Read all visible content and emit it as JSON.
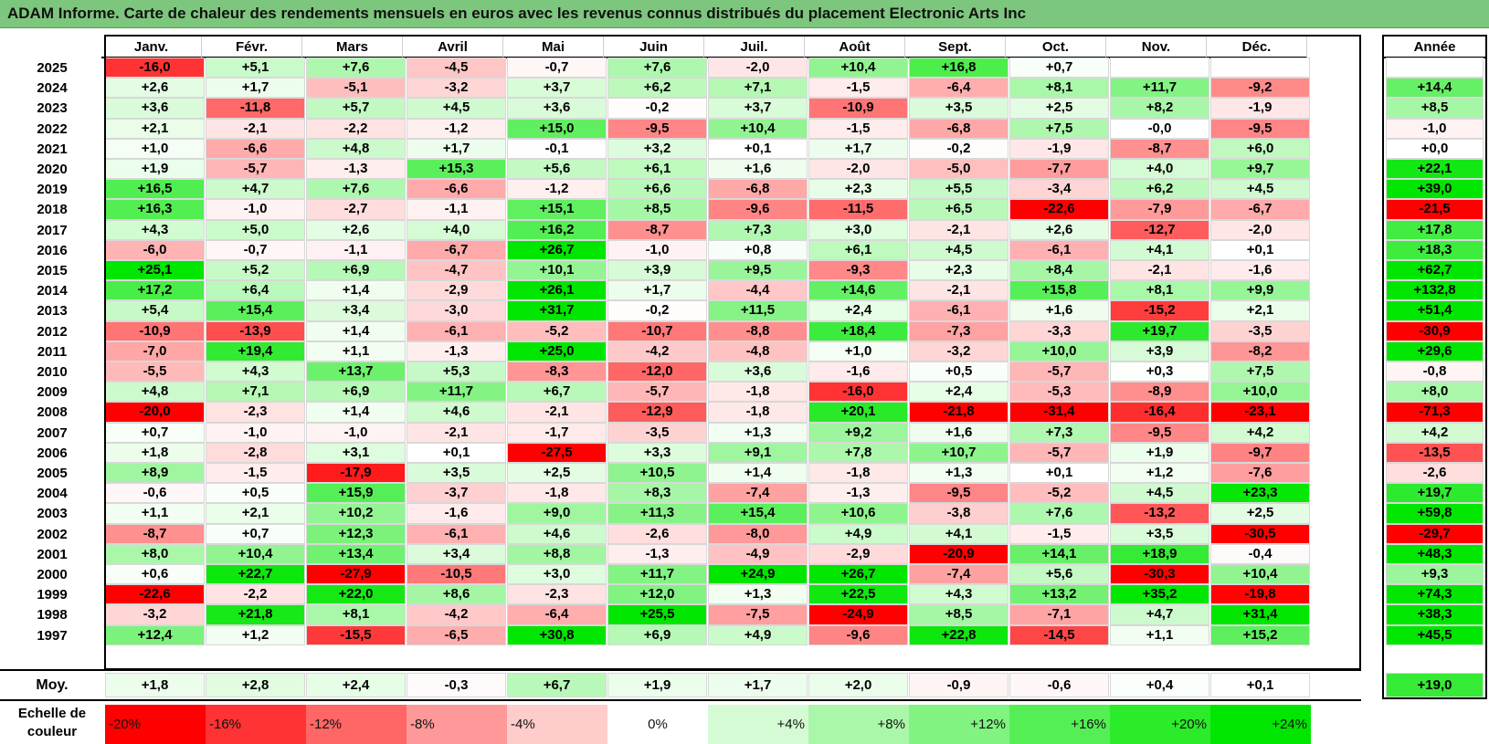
{
  "title": "ADAM Informe. Carte de chaleur des rendements mensuels en euros avec les revenus connus distribués du placement Electronic Arts Inc",
  "chart_data": {
    "type": "heatmap",
    "title": "ADAM Informe. Carte de chaleur des rendements mensuels en euros avec les revenus connus distribués du placement Electronic Arts Inc",
    "columns": [
      "Janv.",
      "Févr.",
      "Mars",
      "Avril",
      "Mai",
      "Juin",
      "Juil.",
      "Août",
      "Sept.",
      "Oct.",
      "Nov.",
      "Déc."
    ],
    "year_column_label": "Année",
    "rows": [
      {
        "year": "2025",
        "values": [
          "-16,0",
          "+5,1",
          "+7,6",
          "-4,5",
          "-0,7",
          "+7,6",
          "-2,0",
          "+10,4",
          "+16,8",
          "+0,7",
          "",
          ""
        ],
        "annual": ""
      },
      {
        "year": "2024",
        "values": [
          "+2,6",
          "+1,7",
          "-5,1",
          "-3,2",
          "+3,7",
          "+6,2",
          "+7,1",
          "-1,5",
          "-6,4",
          "+8,1",
          "+11,7",
          "-9,2"
        ],
        "annual": "+14,4"
      },
      {
        "year": "2023",
        "values": [
          "+3,6",
          "-11,8",
          "+5,7",
          "+4,5",
          "+3,6",
          "-0,2",
          "+3,7",
          "-10,9",
          "+3,5",
          "+2,5",
          "+8,2",
          "-1,9"
        ],
        "annual": "+8,5"
      },
      {
        "year": "2022",
        "values": [
          "+2,1",
          "-2,1",
          "-2,2",
          "-1,2",
          "+15,0",
          "-9,5",
          "+10,4",
          "-1,5",
          "-6,8",
          "+7,5",
          "-0,0",
          "-9,5"
        ],
        "annual": "-1,0"
      },
      {
        "year": "2021",
        "values": [
          "+1,0",
          "-6,6",
          "+4,8",
          "+1,7",
          "-0,1",
          "+3,2",
          "+0,1",
          "+1,7",
          "-0,2",
          "-1,9",
          "-8,7",
          "+6,0"
        ],
        "annual": "+0,0"
      },
      {
        "year": "2020",
        "values": [
          "+1,9",
          "-5,7",
          "-1,3",
          "+15,3",
          "+5,6",
          "+6,1",
          "+1,6",
          "-2,0",
          "-5,0",
          "-7,7",
          "+4,0",
          "+9,7"
        ],
        "annual": "+22,1"
      },
      {
        "year": "2019",
        "values": [
          "+16,5",
          "+4,7",
          "+7,6",
          "-6,6",
          "-1,2",
          "+6,6",
          "-6,8",
          "+2,3",
          "+5,5",
          "-3,4",
          "+6,2",
          "+4,5"
        ],
        "annual": "+39,0"
      },
      {
        "year": "2018",
        "values": [
          "+16,3",
          "-1,0",
          "-2,7",
          "-1,1",
          "+15,1",
          "+8,5",
          "-9,6",
          "-11,5",
          "+6,5",
          "-22,6",
          "-7,9",
          "-6,7"
        ],
        "annual": "-21,5"
      },
      {
        "year": "2017",
        "values": [
          "+4,3",
          "+5,0",
          "+2,6",
          "+4,0",
          "+16,2",
          "-8,7",
          "+7,3",
          "+3,0",
          "-2,1",
          "+2,6",
          "-12,7",
          "-2,0"
        ],
        "annual": "+17,8"
      },
      {
        "year": "2016",
        "values": [
          "-6,0",
          "-0,7",
          "-1,1",
          "-6,7",
          "+26,7",
          "-1,0",
          "+0,8",
          "+6,1",
          "+4,5",
          "-6,1",
          "+4,1",
          "+0,1"
        ],
        "annual": "+18,3"
      },
      {
        "year": "2015",
        "values": [
          "+25,1",
          "+5,2",
          "+6,9",
          "-4,7",
          "+10,1",
          "+3,9",
          "+9,5",
          "-9,3",
          "+2,3",
          "+8,4",
          "-2,1",
          "-1,6"
        ],
        "annual": "+62,7"
      },
      {
        "year": "2014",
        "values": [
          "+17,2",
          "+6,4",
          "+1,4",
          "-2,9",
          "+26,1",
          "+1,7",
          "-4,4",
          "+14,6",
          "-2,1",
          "+15,8",
          "+8,1",
          "+9,9"
        ],
        "annual": "+132,8"
      },
      {
        "year": "2013",
        "values": [
          "+5,4",
          "+15,4",
          "+3,4",
          "-3,0",
          "+31,7",
          "-0,2",
          "+11,5",
          "+2,4",
          "-6,1",
          "+1,6",
          "-15,2",
          "+2,1"
        ],
        "annual": "+51,4"
      },
      {
        "year": "2012",
        "values": [
          "-10,9",
          "-13,9",
          "+1,4",
          "-6,1",
          "-5,2",
          "-10,7",
          "-8,8",
          "+18,4",
          "-7,3",
          "-3,3",
          "+19,7",
          "-3,5"
        ],
        "annual": "-30,9"
      },
      {
        "year": "2011",
        "values": [
          "-7,0",
          "+19,4",
          "+1,1",
          "-1,3",
          "+25,0",
          "-4,2",
          "-4,8",
          "+1,0",
          "-3,2",
          "+10,0",
          "+3,9",
          "-8,2"
        ],
        "annual": "+29,6"
      },
      {
        "year": "2010",
        "values": [
          "-5,5",
          "+4,3",
          "+13,7",
          "+5,3",
          "-8,3",
          "-12,0",
          "+3,6",
          "-1,6",
          "+0,5",
          "-5,7",
          "+0,3",
          "+7,5"
        ],
        "annual": "-0,8"
      },
      {
        "year": "2009",
        "values": [
          "+4,8",
          "+7,1",
          "+6,9",
          "+11,7",
          "+6,7",
          "-5,7",
          "-1,8",
          "-16,0",
          "+2,4",
          "-5,3",
          "-8,9",
          "+10,0"
        ],
        "annual": "+8,0"
      },
      {
        "year": "2008",
        "values": [
          "-20,0",
          "-2,3",
          "+1,4",
          "+4,6",
          "-2,1",
          "-12,9",
          "-1,8",
          "+20,1",
          "-21,8",
          "-31,4",
          "-16,4",
          "-23,1"
        ],
        "annual": "-71,3"
      },
      {
        "year": "2007",
        "values": [
          "+0,7",
          "-1,0",
          "-1,0",
          "-2,1",
          "-1,7",
          "-3,5",
          "+1,3",
          "+9,2",
          "+1,6",
          "+7,3",
          "-9,5",
          "+4,2"
        ],
        "annual": "+4,2"
      },
      {
        "year": "2006",
        "values": [
          "+1,8",
          "-2,8",
          "+3,1",
          "+0,1",
          "-27,5",
          "+3,3",
          "+9,1",
          "+7,8",
          "+10,7",
          "-5,7",
          "+1,9",
          "-9,7"
        ],
        "annual": "-13,5"
      },
      {
        "year": "2005",
        "values": [
          "+8,9",
          "-1,5",
          "-17,9",
          "+3,5",
          "+2,5",
          "+10,5",
          "+1,4",
          "-1,8",
          "+1,3",
          "+0,1",
          "+1,2",
          "-7,6"
        ],
        "annual": "-2,6"
      },
      {
        "year": "2004",
        "values": [
          "-0,6",
          "+0,5",
          "+15,9",
          "-3,7",
          "-1,8",
          "+8,3",
          "-7,4",
          "-1,3",
          "-9,5",
          "-5,2",
          "+4,5",
          "+23,3"
        ],
        "annual": "+19,7"
      },
      {
        "year": "2003",
        "values": [
          "+1,1",
          "+2,1",
          "+10,2",
          "-1,6",
          "+9,0",
          "+11,3",
          "+15,4",
          "+10,6",
          "-3,8",
          "+7,6",
          "-13,2",
          "+2,5"
        ],
        "annual": "+59,8"
      },
      {
        "year": "2002",
        "values": [
          "-8,7",
          "+0,7",
          "+12,3",
          "-6,1",
          "+4,6",
          "-2,6",
          "-8,0",
          "+4,9",
          "+4,1",
          "-1,5",
          "+3,5",
          "-30,5"
        ],
        "annual": "-29,7"
      },
      {
        "year": "2001",
        "values": [
          "+8,0",
          "+10,4",
          "+13,4",
          "+3,4",
          "+8,8",
          "-1,3",
          "-4,9",
          "-2,9",
          "-20,9",
          "+14,1",
          "+18,9",
          "-0,4"
        ],
        "annual": "+48,3"
      },
      {
        "year": "2000",
        "values": [
          "+0,6",
          "+22,7",
          "-27,9",
          "-10,5",
          "+3,0",
          "+11,7",
          "+24,9",
          "+26,7",
          "-7,4",
          "+5,6",
          "-30,3",
          "+10,4"
        ],
        "annual": "+9,3"
      },
      {
        "year": "1999",
        "values": [
          "-22,6",
          "-2,2",
          "+22,0",
          "+8,6",
          "-2,3",
          "+12,0",
          "+1,3",
          "+22,5",
          "+4,3",
          "+13,2",
          "+35,2",
          "-19,8"
        ],
        "annual": "+74,3"
      },
      {
        "year": "1998",
        "values": [
          "-3,2",
          "+21,8",
          "+8,1",
          "-4,2",
          "-6,4",
          "+25,5",
          "-7,5",
          "-24,9",
          "+8,5",
          "-7,1",
          "+4,7",
          "+31,4"
        ],
        "annual": "+38,3"
      },
      {
        "year": "1997",
        "values": [
          "+12,4",
          "+1,2",
          "-15,5",
          "-6,5",
          "+30,8",
          "+6,9",
          "+4,9",
          "-9,6",
          "+22,8",
          "-14,5",
          "+1,1",
          "+15,2"
        ],
        "annual": "+45,5"
      }
    ],
    "average": {
      "label": "Moy.",
      "values": [
        "+1,8",
        "+2,8",
        "+2,4",
        "-0,3",
        "+6,7",
        "+1,9",
        "+1,7",
        "+2,0",
        "-0,9",
        "-0,6",
        "+0,4",
        "+0,1"
      ],
      "annual": "+19,0"
    },
    "scale": {
      "label": "Echelle de couleur",
      "stops": [
        {
          "label": "-20%",
          "value": -20,
          "color": "#ff0000"
        },
        {
          "label": "-16%",
          "value": -16,
          "color": "#ff3333"
        },
        {
          "label": "-12%",
          "value": -12,
          "color": "#ff6666"
        },
        {
          "label": "-8%",
          "value": -8,
          "color": "#ff9999"
        },
        {
          "label": "-4%",
          "value": -4,
          "color": "#ffcccc"
        },
        {
          "label": "0%",
          "value": 0,
          "color": "#ffffff"
        },
        {
          "label": "+4%",
          "value": 4,
          "color": "#d5fbd5"
        },
        {
          "label": "+8%",
          "value": 8,
          "color": "#aaf7aa"
        },
        {
          "label": "+12%",
          "value": 12,
          "color": "#80f380"
        },
        {
          "label": "+16%",
          "value": 16,
          "color": "#55ef55"
        },
        {
          "label": "+20%",
          "value": 20,
          "color": "#2beb2b"
        },
        {
          "label": "+24%",
          "value": 24,
          "color": "#00e600"
        }
      ]
    },
    "colors": {
      "negative": "#ff0000",
      "neutral": "#ffffff",
      "positive": "#00e600",
      "title_bar": "#7dc67d"
    }
  }
}
